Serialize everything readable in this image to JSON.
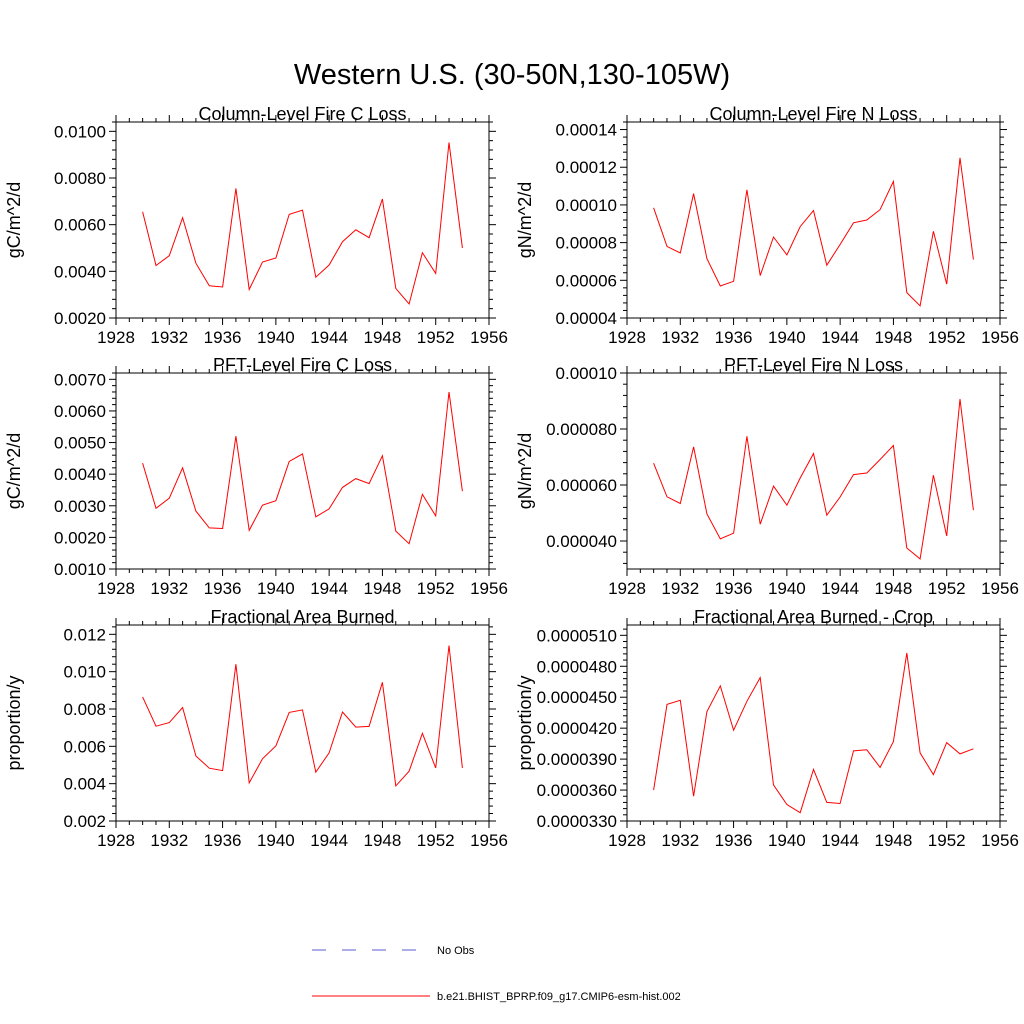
{
  "figure": {
    "title": "Western U.S. (30-50N,130-105W)"
  },
  "legend": {
    "entries": [
      {
        "label": "No Obs",
        "color": "#5b5bd6",
        "style": "dashed"
      },
      {
        "label": "b.e21.BHIST_BPRP.f09_g17.CMIP6-esm-hist.002",
        "color": "#ff0000",
        "style": "solid"
      }
    ]
  },
  "chart_data": [
    {
      "type": "line",
      "title": "Column-Level Fire C Loss",
      "ylabel": "gC/m^2/d",
      "xlabel": "",
      "xlim": [
        1928,
        1956
      ],
      "ylim": [
        0.002,
        0.0104
      ],
      "xticks": [
        1928,
        1932,
        1936,
        1940,
        1944,
        1948,
        1952,
        1956
      ],
      "xtick_labels": [
        "1928",
        "1932",
        "1936",
        "1940",
        "1944",
        "1948",
        "1952",
        "1956"
      ],
      "yticks": [
        0.002,
        0.004,
        0.006,
        0.008,
        0.01
      ],
      "ytick_labels": [
        "0.0020",
        "0.0040",
        "0.0060",
        "0.0080",
        "0.0100"
      ],
      "series": [
        {
          "name": "b.e21.BHIST_BPRP.f09_g17.CMIP6-esm-hist.002",
          "color": "#ff0000",
          "x": [
            1930,
            1931,
            1932,
            1933,
            1934,
            1935,
            1936,
            1937,
            1938,
            1939,
            1940,
            1941,
            1942,
            1943,
            1944,
            1945,
            1946,
            1947,
            1948,
            1949,
            1950,
            1951,
            1952,
            1953,
            1954
          ],
          "y": [
            0.00655,
            0.00425,
            0.00467,
            0.0063,
            0.00435,
            0.00338,
            0.00333,
            0.00755,
            0.00322,
            0.0044,
            0.00457,
            0.00644,
            0.00662,
            0.00375,
            0.00427,
            0.00527,
            0.00578,
            0.00544,
            0.0071,
            0.00327,
            0.0026,
            0.0048,
            0.00391,
            0.00952,
            0.005
          ]
        }
      ]
    },
    {
      "type": "line",
      "title": "Column-Level Fire N Loss",
      "ylabel": "gN/m^2/d",
      "xlabel": "",
      "xlim": [
        1928,
        1956
      ],
      "ylim": [
        4e-05,
        0.000144
      ],
      "xticks": [
        1928,
        1932,
        1936,
        1940,
        1944,
        1948,
        1952,
        1956
      ],
      "xtick_labels": [
        "1928",
        "1932",
        "1936",
        "1940",
        "1944",
        "1948",
        "1952",
        "1956"
      ],
      "yticks": [
        4e-05,
        6e-05,
        8e-05,
        0.0001,
        0.00012,
        0.00014
      ],
      "ytick_labels": [
        "0.00004",
        "0.00006",
        "0.00008",
        "0.00010",
        "0.00012",
        "0.00014"
      ],
      "series": [
        {
          "name": "b.e21.BHIST_BPRP.f09_g17.CMIP6-esm-hist.002",
          "color": "#ff0000",
          "x": [
            1930,
            1931,
            1932,
            1933,
            1934,
            1935,
            1936,
            1937,
            1938,
            1939,
            1940,
            1941,
            1942,
            1943,
            1944,
            1945,
            1946,
            1947,
            1948,
            1949,
            1950,
            1951,
            1952,
            1953,
            1954
          ],
          "y": [
            9.85e-05,
            7.8e-05,
            7.45e-05,
            0.000106,
            7.15e-05,
            5.7e-05,
            5.95e-05,
            0.000108,
            6.25e-05,
            8.3e-05,
            7.35e-05,
            8.85e-05,
            9.7e-05,
            6.8e-05,
            7.9e-05,
            9.05e-05,
            9.2e-05,
            9.75e-05,
            0.0001125,
            5.35e-05,
            4.65e-05,
            8.6e-05,
            5.8e-05,
            0.000125,
            7.1e-05
          ]
        }
      ]
    },
    {
      "type": "line",
      "title": "PFT-Level Fire C Loss",
      "ylabel": "gC/m^2/d",
      "xlabel": "",
      "xlim": [
        1928,
        1956
      ],
      "ylim": [
        0.001,
        0.0072
      ],
      "xticks": [
        1928,
        1932,
        1936,
        1940,
        1944,
        1948,
        1952,
        1956
      ],
      "xtick_labels": [
        "1928",
        "1932",
        "1936",
        "1940",
        "1944",
        "1948",
        "1952",
        "1956"
      ],
      "yticks": [
        0.001,
        0.002,
        0.003,
        0.004,
        0.005,
        0.006,
        0.007
      ],
      "ytick_labels": [
        "0.0010",
        "0.0020",
        "0.0030",
        "0.0040",
        "0.0050",
        "0.0060",
        "0.0070"
      ],
      "series": [
        {
          "name": "b.e21.BHIST_BPRP.f09_g17.CMIP6-esm-hist.002",
          "color": "#ff0000",
          "x": [
            1930,
            1931,
            1932,
            1933,
            1934,
            1935,
            1936,
            1937,
            1938,
            1939,
            1940,
            1941,
            1942,
            1943,
            1944,
            1945,
            1946,
            1947,
            1948,
            1949,
            1950,
            1951,
            1952,
            1953,
            1954
          ],
          "y": [
            0.00435,
            0.00292,
            0.00324,
            0.0042,
            0.00283,
            0.0023,
            0.00228,
            0.0052,
            0.00222,
            0.00302,
            0.00316,
            0.0044,
            0.00464,
            0.00265,
            0.0029,
            0.00358,
            0.00386,
            0.0037,
            0.00458,
            0.0022,
            0.0018,
            0.00336,
            0.00268,
            0.0066,
            0.00346
          ]
        }
      ]
    },
    {
      "type": "line",
      "title": "PFT-Level Fire N Loss",
      "ylabel": "gN/m^2/d",
      "xlabel": "",
      "xlim": [
        1928,
        1956
      ],
      "ylim": [
        3e-05,
        0.0001
      ],
      "xticks": [
        1928,
        1932,
        1936,
        1940,
        1944,
        1948,
        1952,
        1956
      ],
      "xtick_labels": [
        "1928",
        "1932",
        "1936",
        "1940",
        "1944",
        "1948",
        "1952",
        "1956"
      ],
      "yticks": [
        4e-05,
        6e-05,
        8e-05,
        0.0001
      ],
      "ytick_labels": [
        "0.000040",
        "0.000060",
        "0.000080",
        "0.00010"
      ],
      "series": [
        {
          "name": "b.e21.BHIST_BPRP.f09_g17.CMIP6-esm-hist.002",
          "color": "#ff0000",
          "x": [
            1930,
            1931,
            1932,
            1933,
            1934,
            1935,
            1936,
            1937,
            1938,
            1939,
            1940,
            1941,
            1942,
            1943,
            1944,
            1945,
            1946,
            1947,
            1948,
            1949,
            1950,
            1951,
            1952,
            1953,
            1954
          ],
          "y": [
            6.78e-05,
            5.58e-05,
            5.34e-05,
            7.36e-05,
            4.97e-05,
            4.08e-05,
            4.28e-05,
            7.74e-05,
            4.6e-05,
            5.96e-05,
            5.28e-05,
            6.25e-05,
            7.12e-05,
            4.92e-05,
            5.57e-05,
            6.37e-05,
            6.43e-05,
            6.91e-05,
            7.41e-05,
            3.75e-05,
            3.36e-05,
            6.35e-05,
            4.18e-05,
            9.07e-05,
            5.1e-05
          ]
        }
      ]
    },
    {
      "type": "line",
      "title": "Fractional Area Burned",
      "ylabel": "proportion/y",
      "xlabel": "",
      "xlim": [
        1928,
        1956
      ],
      "ylim": [
        0.002,
        0.0125
      ],
      "xticks": [
        1928,
        1932,
        1936,
        1940,
        1944,
        1948,
        1952,
        1956
      ],
      "xtick_labels": [
        "1928",
        "1932",
        "1936",
        "1940",
        "1944",
        "1948",
        "1952",
        "1956"
      ],
      "yticks": [
        0.002,
        0.004,
        0.006,
        0.008,
        0.01,
        0.012
      ],
      "ytick_labels": [
        "0.002",
        "0.004",
        "0.006",
        "0.008",
        "0.010",
        "0.012"
      ],
      "series": [
        {
          "name": "b.e21.BHIST_BPRP.f09_g17.CMIP6-esm-hist.002",
          "color": "#ff0000",
          "x": [
            1930,
            1931,
            1932,
            1933,
            1934,
            1935,
            1936,
            1937,
            1938,
            1939,
            1940,
            1941,
            1942,
            1943,
            1944,
            1945,
            1946,
            1947,
            1948,
            1949,
            1950,
            1951,
            1952,
            1953,
            1954
          ],
          "y": [
            0.00865,
            0.00708,
            0.00727,
            0.00808,
            0.00548,
            0.00483,
            0.0047,
            0.0104,
            0.00404,
            0.00533,
            0.00603,
            0.00782,
            0.00795,
            0.00462,
            0.00565,
            0.00784,
            0.00703,
            0.00707,
            0.00943,
            0.00388,
            0.00467,
            0.0067,
            0.00484,
            0.0114,
            0.00484
          ]
        }
      ]
    },
    {
      "type": "line",
      "title": "Fractional Area Burned - Crop",
      "ylabel": "proportion/y",
      "xlabel": "",
      "xlim": [
        1928,
        1956
      ],
      "ylim": [
        3.3e-05,
        5.2e-05
      ],
      "xticks": [
        1928,
        1932,
        1936,
        1940,
        1944,
        1948,
        1952,
        1956
      ],
      "xtick_labels": [
        "1928",
        "1932",
        "1936",
        "1940",
        "1944",
        "1948",
        "1952",
        "1956"
      ],
      "yticks": [
        3.3e-05,
        3.6e-05,
        3.9e-05,
        4.2e-05,
        4.5e-05,
        4.8e-05,
        5.1e-05
      ],
      "ytick_labels": [
        "0.0000330",
        "0.0000360",
        "0.0000390",
        "0.0000420",
        "0.0000450",
        "0.0000480",
        "0.0000510"
      ],
      "series": [
        {
          "name": "b.e21.BHIST_BPRP.f09_g17.CMIP6-esm-hist.002",
          "color": "#ff0000",
          "x": [
            1930,
            1931,
            1932,
            1933,
            1934,
            1935,
            1936,
            1937,
            1938,
            1939,
            1940,
            1941,
            1942,
            1943,
            1944,
            1945,
            1946,
            1947,
            1948,
            1949,
            1950,
            1951,
            1952,
            1953,
            1954
          ],
          "y": [
            3.6e-05,
            4.43e-05,
            4.47e-05,
            3.54e-05,
            4.36e-05,
            4.61e-05,
            4.18e-05,
            4.46e-05,
            4.69e-05,
            3.65e-05,
            3.46e-05,
            3.38e-05,
            3.8e-05,
            3.48e-05,
            3.47e-05,
            3.98e-05,
            3.99e-05,
            3.82e-05,
            4.07e-05,
            4.93e-05,
            3.96e-05,
            3.75e-05,
            4.06e-05,
            3.95e-05,
            4e-05
          ]
        }
      ]
    }
  ]
}
